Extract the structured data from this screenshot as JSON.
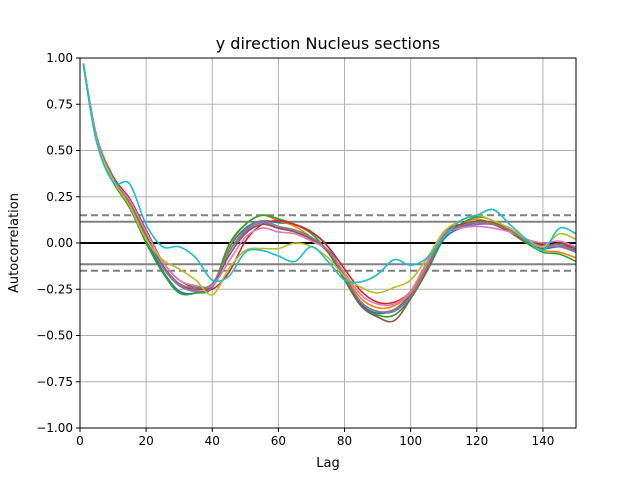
{
  "chart_data": {
    "type": "line",
    "title": "y direction Nucleus sections",
    "xlabel": "Lag",
    "ylabel": "Autocorrelation",
    "xlim": [
      0,
      150
    ],
    "ylim": [
      -1.0,
      1.0
    ],
    "xticks": [
      0,
      20,
      40,
      60,
      80,
      100,
      120,
      140
    ],
    "yticks": [
      -1.0,
      -0.75,
      -0.5,
      -0.25,
      0.0,
      0.25,
      0.5,
      0.75,
      1.0
    ],
    "xtick_labels": [
      "0",
      "20",
      "40",
      "60",
      "80",
      "100",
      "120",
      "140"
    ],
    "ytick_labels": [
      "−1.00",
      "−0.75",
      "−0.50",
      "−0.25",
      "0.00",
      "0.25",
      "0.50",
      "0.75",
      "1.00"
    ],
    "grid": true,
    "reference_lines": {
      "zero": 0.0,
      "solid": [
        0.115,
        -0.115
      ],
      "dashed": [
        0.15,
        -0.15
      ]
    },
    "x": [
      1,
      5,
      10,
      15,
      20,
      25,
      30,
      35,
      40,
      45,
      50,
      55,
      60,
      65,
      70,
      75,
      80,
      85,
      90,
      95,
      100,
      105,
      110,
      115,
      120,
      125,
      130,
      135,
      140,
      145,
      150
    ],
    "series": [
      {
        "color": "#1f77b4",
        "values": [
          0.97,
          0.55,
          0.33,
          0.2,
          0.02,
          -0.15,
          -0.26,
          -0.27,
          -0.23,
          -0.03,
          0.08,
          0.12,
          0.11,
          0.1,
          0.06,
          -0.02,
          -0.18,
          -0.33,
          -0.38,
          -0.36,
          -0.28,
          -0.15,
          0.02,
          0.08,
          0.11,
          0.1,
          0.06,
          0.0,
          -0.03,
          -0.02,
          -0.04
        ]
      },
      {
        "color": "#ff7f0e",
        "values": [
          0.97,
          0.56,
          0.34,
          0.22,
          0.04,
          -0.13,
          -0.23,
          -0.26,
          -0.24,
          -0.02,
          0.1,
          0.15,
          0.12,
          0.09,
          0.03,
          -0.04,
          -0.17,
          -0.3,
          -0.35,
          -0.34,
          -0.27,
          -0.12,
          0.05,
          0.1,
          0.13,
          0.1,
          0.06,
          0.0,
          -0.04,
          -0.05,
          -0.08
        ]
      },
      {
        "color": "#2ca02c",
        "values": [
          0.97,
          0.55,
          0.33,
          0.19,
          0.0,
          -0.16,
          -0.27,
          -0.27,
          -0.24,
          -0.01,
          0.1,
          0.15,
          0.13,
          0.1,
          0.05,
          -0.05,
          -0.2,
          -0.34,
          -0.39,
          -0.39,
          -0.3,
          -0.15,
          0.03,
          0.1,
          0.14,
          0.12,
          0.06,
          0.0,
          -0.05,
          -0.06,
          -0.1
        ]
      },
      {
        "color": "#d62728",
        "values": [
          0.97,
          0.58,
          0.36,
          0.24,
          0.07,
          -0.1,
          -0.2,
          -0.24,
          -0.25,
          -0.16,
          0.01,
          0.1,
          0.12,
          0.1,
          0.06,
          -0.02,
          -0.14,
          -0.26,
          -0.32,
          -0.32,
          -0.26,
          -0.1,
          0.06,
          0.1,
          0.11,
          0.1,
          0.06,
          0.01,
          -0.01,
          -0.01,
          -0.03
        ]
      },
      {
        "color": "#9467bd",
        "values": [
          0.97,
          0.57,
          0.35,
          0.21,
          0.03,
          -0.13,
          -0.23,
          -0.26,
          -0.24,
          -0.05,
          0.06,
          0.11,
          0.08,
          0.06,
          0.02,
          -0.04,
          -0.18,
          -0.32,
          -0.37,
          -0.37,
          -0.29,
          -0.13,
          0.04,
          0.08,
          0.1,
          0.1,
          0.07,
          0.02,
          -0.02,
          -0.02,
          -0.05
        ]
      },
      {
        "color": "#8c564b",
        "values": [
          0.97,
          0.57,
          0.35,
          0.22,
          0.04,
          -0.12,
          -0.22,
          -0.25,
          -0.23,
          -0.07,
          0.05,
          0.1,
          0.08,
          0.06,
          0.02,
          -0.05,
          -0.19,
          -0.34,
          -0.4,
          -0.42,
          -0.3,
          -0.14,
          0.05,
          0.09,
          0.12,
          0.11,
          0.07,
          0.02,
          -0.02,
          0.0,
          -0.03
        ]
      },
      {
        "color": "#e377c2",
        "values": [
          0.97,
          0.58,
          0.35,
          0.23,
          0.06,
          -0.1,
          -0.2,
          -0.23,
          -0.23,
          -0.1,
          0.03,
          0.08,
          0.06,
          0.05,
          0.01,
          -0.04,
          -0.16,
          -0.28,
          -0.33,
          -0.33,
          -0.26,
          -0.1,
          0.05,
          0.08,
          0.09,
          0.08,
          0.06,
          0.02,
          0.0,
          0.01,
          -0.02
        ]
      },
      {
        "color": "#7f7f7f",
        "values": [
          0.97,
          0.57,
          0.35,
          0.21,
          0.03,
          -0.13,
          -0.22,
          -0.24,
          -0.22,
          -0.05,
          0.07,
          0.12,
          0.09,
          0.07,
          0.03,
          -0.04,
          -0.18,
          -0.32,
          -0.37,
          -0.36,
          -0.29,
          -0.13,
          0.04,
          0.09,
          0.11,
          0.1,
          0.07,
          0.01,
          -0.02,
          -0.01,
          -0.05
        ]
      },
      {
        "color": "#bcbd22",
        "values": [
          0.97,
          0.56,
          0.34,
          0.2,
          0.02,
          -0.09,
          -0.14,
          -0.2,
          -0.28,
          -0.14,
          -0.04,
          -0.03,
          -0.03,
          0.0,
          -0.02,
          -0.08,
          -0.18,
          -0.24,
          -0.27,
          -0.24,
          -0.2,
          -0.08,
          0.06,
          0.12,
          0.15,
          0.12,
          0.08,
          0.02,
          -0.02,
          0.05,
          0.02
        ]
      },
      {
        "color": "#17becf",
        "values": [
          0.97,
          0.55,
          0.33,
          0.32,
          0.1,
          -0.02,
          -0.02,
          -0.08,
          -0.2,
          -0.18,
          -0.05,
          -0.04,
          -0.07,
          -0.1,
          -0.02,
          -0.1,
          -0.2,
          -0.21,
          -0.17,
          -0.09,
          -0.12,
          -0.08,
          0.03,
          0.12,
          0.15,
          0.18,
          0.1,
          0.02,
          -0.04,
          0.08,
          0.05
        ]
      }
    ]
  }
}
